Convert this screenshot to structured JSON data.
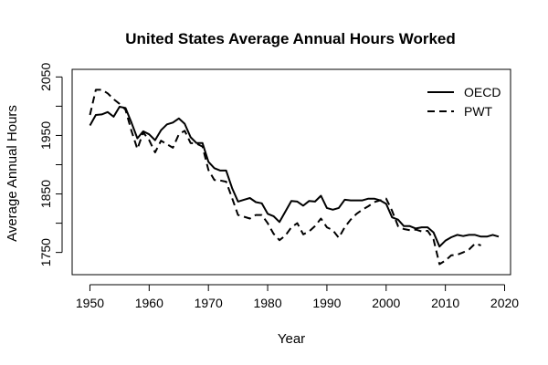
{
  "chart_data": {
    "type": "line",
    "title": "United States Average Annual Hours Worked",
    "xlabel": "Year",
    "ylabel": "Average Annual Hours",
    "xlim": [
      1947,
      2021
    ],
    "ylim": [
      1712,
      2063
    ],
    "x_ticks": [
      1950,
      1960,
      1970,
      1980,
      1990,
      2000,
      2010,
      2020
    ],
    "y_ticks": [
      1750,
      1850,
      1950,
      2050
    ],
    "grid": false,
    "legend_position": "top-right",
    "series": [
      {
        "name": "OECD",
        "line_style": "solid",
        "color": "#000000",
        "x": [
          1950,
          1951,
          1952,
          1953,
          1954,
          1955,
          1956,
          1957,
          1958,
          1959,
          1960,
          1961,
          1962,
          1963,
          1964,
          1965,
          1966,
          1967,
          1968,
          1969,
          1970,
          1971,
          1972,
          1973,
          1974,
          1975,
          1976,
          1977,
          1978,
          1979,
          1980,
          1981,
          1982,
          1983,
          1984,
          1985,
          1986,
          1987,
          1988,
          1989,
          1990,
          1991,
          1992,
          1993,
          1994,
          1995,
          1996,
          1997,
          1998,
          1999,
          2000,
          2001,
          2002,
          2003,
          2004,
          2005,
          2006,
          2007,
          2008,
          2009,
          2010,
          2011,
          2012,
          2013,
          2014,
          2015,
          2016,
          2017,
          2018,
          2019
        ],
        "y": [
          1967,
          1985,
          1986,
          1990,
          1982,
          1999,
          1997,
          1972,
          1945,
          1957,
          1952,
          1942,
          1959,
          1969,
          1972,
          1979,
          1970,
          1947,
          1937,
          1937,
          1905,
          1894,
          1890,
          1890,
          1860,
          1837,
          1840,
          1843,
          1836,
          1834,
          1816,
          1812,
          1802,
          1820,
          1838,
          1837,
          1830,
          1838,
          1837,
          1847,
          1826,
          1823,
          1826,
          1840,
          1839,
          1839,
          1839,
          1842,
          1842,
          1839,
          1833,
          1810,
          1806,
          1795,
          1795,
          1791,
          1793,
          1793,
          1784,
          1760,
          1770,
          1776,
          1780,
          1778,
          1780,
          1780,
          1777,
          1777,
          1780,
          1777
        ]
      },
      {
        "name": "PWT",
        "line_style": "dashed",
        "color": "#000000",
        "x": [
          1950,
          1951,
          1952,
          1953,
          1954,
          1955,
          1956,
          1957,
          1958,
          1959,
          1960,
          1961,
          1962,
          1963,
          1964,
          1965,
          1966,
          1967,
          1968,
          1969,
          1970,
          1971,
          1972,
          1973,
          1974,
          1975,
          1976,
          1977,
          1978,
          1979,
          1980,
          1981,
          1982,
          1983,
          1984,
          1985,
          1986,
          1987,
          1988,
          1989,
          1990,
          1991,
          1992,
          1993,
          1994,
          1995,
          1996,
          1997,
          1998,
          1999,
          2000,
          2001,
          2002,
          2003,
          2004,
          2005,
          2006,
          2007,
          2008,
          2009,
          2010,
          2011,
          2012,
          2013,
          2014,
          2015,
          2016
        ],
        "y": [
          1985,
          2028,
          2028,
          2022,
          2012,
          2004,
          1994,
          1958,
          1927,
          1955,
          1942,
          1921,
          1941,
          1935,
          1929,
          1952,
          1958,
          1937,
          1936,
          1931,
          1891,
          1874,
          1873,
          1871,
          1843,
          1814,
          1811,
          1808,
          1814,
          1814,
          1800,
          1782,
          1771,
          1779,
          1793,
          1800,
          1781,
          1786,
          1795,
          1808,
          1793,
          1788,
          1775,
          1793,
          1806,
          1816,
          1823,
          1829,
          1836,
          1839,
          1842,
          1821,
          1795,
          1790,
          1788,
          1789,
          1786,
          1787,
          1772,
          1730,
          1736,
          1745,
          1746,
          1750,
          1755,
          1765,
          1762
        ]
      }
    ]
  }
}
